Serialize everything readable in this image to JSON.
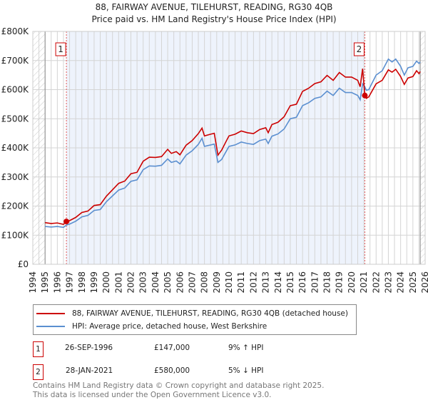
{
  "chart_data": {
    "type": "line",
    "title": "88, FAIRWAY AVENUE, TILEHURST, READING, RG30 4QB",
    "subtitle": "Price paid vs. HM Land Registry's House Price Index (HPI)",
    "xlim": [
      1994,
      2026
    ],
    "ylim": [
      0,
      800000
    ],
    "x_ticks": [
      "1994",
      "1995",
      "1996",
      "1997",
      "1998",
      "1999",
      "2000",
      "2001",
      "2002",
      "2003",
      "2004",
      "2005",
      "2006",
      "2007",
      "2008",
      "2009",
      "2010",
      "2011",
      "2012",
      "2013",
      "2014",
      "2015",
      "2016",
      "2017",
      "2018",
      "2019",
      "2020",
      "2021",
      "2022",
      "2023",
      "2024",
      "2025",
      "2026"
    ],
    "y_ticks": [
      {
        "v": 0,
        "label": "£0"
      },
      {
        "v": 100000,
        "label": "£100K"
      },
      {
        "v": 200000,
        "label": "£200K"
      },
      {
        "v": 300000,
        "label": "£300K"
      },
      {
        "v": 400000,
        "label": "£400K"
      },
      {
        "v": 500000,
        "label": "£500K"
      },
      {
        "v": 600000,
        "label": "£600K"
      },
      {
        "v": 700000,
        "label": "£700K"
      },
      {
        "v": 800000,
        "label": "£800K"
      }
    ],
    "grid": true,
    "series": [
      {
        "name": "88, FAIRWAY AVENUE, TILEHURST, READING, RG30 4QB (detached house)",
        "color": "#cc0000",
        "x": [
          1995,
          1995.5,
          1996,
          1996.5,
          1996.74,
          1997,
          1997.5,
          1998,
          1998.5,
          1999,
          1999.5,
          2000,
          2000.5,
          2001,
          2001.5,
          2002,
          2002.5,
          2003,
          2003.5,
          2004,
          2004.5,
          2005,
          2005.3,
          2005.7,
          2006,
          2006.5,
          2007,
          2007.5,
          2007.8,
          2008,
          2008.5,
          2008.8,
          2009.1,
          2009.4,
          2009.8,
          2010,
          2010.5,
          2011,
          2011.5,
          2012,
          2012.5,
          2013,
          2013.2,
          2013.5,
          2014,
          2014.5,
          2015,
          2015.5,
          2016,
          2016.5,
          2017,
          2017.5,
          2018,
          2018.5,
          2019,
          2019.5,
          2020,
          2020.5,
          2020.7,
          2020.9,
          2021.08,
          2021.2,
          2021.4,
          2022,
          2022.5,
          2023,
          2023.3,
          2023.6,
          2024,
          2024.3,
          2024.6,
          2025,
          2025.3,
          2025.5,
          2025.6
        ],
        "y": [
          143,
          140,
          142,
          137,
          147,
          150,
          161,
          178,
          183,
          202,
          205,
          234,
          256,
          278,
          286,
          311,
          316,
          354,
          368,
          367,
          370,
          395,
          381,
          387,
          376,
          409,
          425,
          449,
          468,
          441,
          447,
          450,
          375,
          392,
          425,
          441,
          447,
          458,
          452,
          449,
          463,
          469,
          452,
          480,
          488,
          507,
          545,
          550,
          594,
          605,
          621,
          627,
          649,
          632,
          659,
          643,
          643,
          632,
          610,
          672,
          580,
          570,
          575,
          620,
          632,
          668,
          660,
          670,
          645,
          618,
          640,
          645,
          665,
          655,
          662
        ]
      },
      {
        "name": "HPI: Average price, detached house, West Berkshire",
        "color": "#5b8fd0",
        "x": [
          1995,
          1995.5,
          1996,
          1996.5,
          1996.75,
          1997,
          1997.5,
          1998,
          1998.5,
          1999,
          1999.5,
          2000,
          2000.5,
          2001,
          2001.5,
          2002,
          2002.5,
          2003,
          2003.5,
          2004,
          2004.5,
          2005,
          2005.3,
          2005.7,
          2006,
          2006.5,
          2007,
          2007.5,
          2007.8,
          2008,
          2008.5,
          2008.8,
          2009.1,
          2009.4,
          2009.8,
          2010,
          2010.5,
          2011,
          2011.5,
          2012,
          2012.5,
          2013,
          2013.2,
          2013.5,
          2014,
          2014.5,
          2015,
          2015.5,
          2016,
          2016.5,
          2017,
          2017.5,
          2018,
          2018.5,
          2019,
          2019.5,
          2020,
          2020.5,
          2020.7,
          2020.9,
          2021.08,
          2021.2,
          2021.4,
          2022,
          2022.5,
          2023,
          2023.3,
          2023.6,
          2024,
          2024.3,
          2024.6,
          2025,
          2025.3,
          2025.5,
          2025.6
        ],
        "y": [
          130,
          128,
          130,
          127,
          135,
          138,
          148,
          163,
          168,
          185,
          188,
          215,
          235,
          255,
          262,
          285,
          290,
          325,
          338,
          337,
          340,
          362,
          350,
          355,
          345,
          375,
          390,
          412,
          433,
          405,
          410,
          413,
          350,
          360,
          390,
          405,
          410,
          420,
          415,
          412,
          425,
          430,
          415,
          440,
          448,
          465,
          500,
          505,
          545,
          555,
          570,
          575,
          595,
          580,
          605,
          590,
          590,
          580,
          565,
          620,
          610,
          598,
          600,
          650,
          665,
          705,
          695,
          705,
          680,
          650,
          675,
          680,
          698,
          690,
          695
        ]
      }
    ],
    "y_units": "thousands GBP",
    "sales": [
      {
        "id": "1",
        "date": "26-SEP-1996",
        "x": 1996.74,
        "price": "£147,000",
        "value": 147,
        "hpi": "9% ↑ HPI"
      },
      {
        "id": "2",
        "date": "28-JAN-2021",
        "x": 2021.08,
        "price": "£580,000",
        "value": 580,
        "hpi": "5% ↓ HPI"
      }
    ],
    "legend_placement": "below"
  },
  "title": "88, FAIRWAY AVENUE, TILEHURST, READING, RG30 4QB",
  "subtitle": "Price paid vs. HM Land Registry's House Price Index (HPI)",
  "footer": [
    "Contains HM Land Registry data © Crown copyright and database right 2025.",
    "This data is licensed under the Open Government Licence v3.0."
  ]
}
